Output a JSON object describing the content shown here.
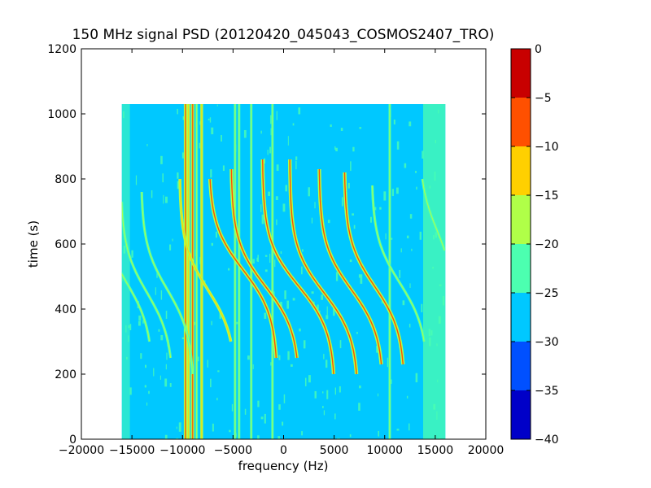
{
  "chart_data": {
    "type": "heatmap",
    "title": "150 MHz signal PSD (20120420_045043_COSMOS2407_TRO)",
    "xlabel": "frequency (Hz)",
    "ylabel": "time (s)",
    "xlim": [
      -20000,
      20000
    ],
    "ylim": [
      0,
      1200
    ],
    "xticks": [
      -20000,
      -15000,
      -10000,
      -5000,
      0,
      5000,
      10000,
      15000,
      20000
    ],
    "xtick_labels": [
      "−20000",
      "−15000",
      "−10000",
      "−5000",
      "0",
      "5000",
      "10000",
      "15000",
      "20000"
    ],
    "yticks": [
      0,
      200,
      400,
      600,
      800,
      1000,
      1200
    ],
    "ytick_labels": [
      "0",
      "200",
      "400",
      "600",
      "800",
      "1000",
      "1200"
    ],
    "data_extent": {
      "frequency": [
        -16000,
        16000
      ],
      "time": [
        0,
        1030
      ]
    },
    "background_level": [
      -30,
      -25
    ],
    "edge_level": [
      -25,
      -20
    ],
    "colorbar": {
      "levels": [
        -40,
        -35,
        -30,
        -25,
        -20,
        -15,
        -10,
        -5,
        0
      ],
      "tick_labels": [
        "−40",
        "−35",
        "−30",
        "−25",
        "−20",
        "−15",
        "−10",
        "−5",
        "0"
      ],
      "colors": [
        "#0000c8",
        "#0050ff",
        "#00c8ff",
        "#4cffb0",
        "#b0ff48",
        "#ffd000",
        "#ff5000",
        "#c80000"
      ]
    },
    "vertical_lines": [
      {
        "frequency": -9700,
        "t0": 0,
        "t1": 1030,
        "level": "strong"
      },
      {
        "frequency": -9400,
        "t0": 0,
        "t1": 1030,
        "level": "medium"
      },
      {
        "frequency": -9000,
        "t0": 0,
        "t1": 1030,
        "level": "strong"
      },
      {
        "frequency": -8600,
        "t0": 0,
        "t1": 1030,
        "level": "weak"
      },
      {
        "frequency": -8100,
        "t0": 0,
        "t1": 1030,
        "level": "medium"
      },
      {
        "frequency": -4800,
        "t0": 0,
        "t1": 1030,
        "level": "weak"
      },
      {
        "frequency": -4400,
        "t0": 0,
        "t1": 1030,
        "level": "weak"
      },
      {
        "frequency": -3200,
        "t0": 0,
        "t1": 1030,
        "level": "weak"
      },
      {
        "frequency": -1100,
        "t0": 0,
        "t1": 1030,
        "level": "weak"
      },
      {
        "frequency": 10500,
        "t0": 0,
        "t1": 1030,
        "level": "weak"
      }
    ],
    "doppler_tracks": [
      {
        "f_center": -15500,
        "t_center": 480,
        "amplitude": 2600,
        "span": [
          300,
          800
        ],
        "level": "weak"
      },
      {
        "f_center": -13500,
        "t_center": 450,
        "amplitude": 2600,
        "span": [
          250,
          730
        ],
        "level": "weak"
      },
      {
        "f_center": -11500,
        "t_center": 460,
        "amplitude": 2600,
        "span": [
          200,
          760
        ],
        "level": "weak"
      },
      {
        "f_center": -7500,
        "t_center": 460,
        "amplitude": 2800,
        "span": [
          300,
          800
        ],
        "level": "medium"
      },
      {
        "f_center": -4000,
        "t_center": 520,
        "amplitude": 3400,
        "span": [
          250,
          800
        ],
        "level": "strong"
      },
      {
        "f_center": -1800,
        "t_center": 470,
        "amplitude": 3400,
        "span": [
          250,
          830
        ],
        "level": "strong"
      },
      {
        "f_center": 1500,
        "t_center": 470,
        "amplitude": 3600,
        "span": [
          200,
          860
        ],
        "level": "strong"
      },
      {
        "f_center": 4000,
        "t_center": 450,
        "amplitude": 3400,
        "span": [
          200,
          860
        ],
        "level": "strong"
      },
      {
        "f_center": 6700,
        "t_center": 460,
        "amplitude": 3200,
        "span": [
          230,
          830
        ],
        "level": "strong"
      },
      {
        "f_center": 9000,
        "t_center": 470,
        "amplitude": 3000,
        "span": [
          230,
          820
        ],
        "level": "strong"
      },
      {
        "f_center": 11500,
        "t_center": 480,
        "amplitude": 2800,
        "span": [
          300,
          780
        ],
        "level": "weak"
      },
      {
        "f_center": 15200,
        "t_center": 640,
        "amplitude": 1800,
        "span": [
          580,
          800
        ],
        "level": "weak"
      }
    ]
  }
}
